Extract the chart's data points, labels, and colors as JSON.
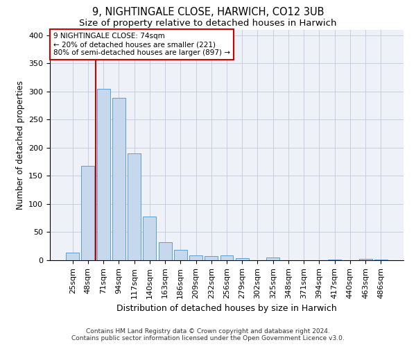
{
  "title_line1": "9, NIGHTINGALE CLOSE, HARWICH, CO12 3UB",
  "title_line2": "Size of property relative to detached houses in Harwich",
  "xlabel": "Distribution of detached houses by size in Harwich",
  "ylabel": "Number of detached properties",
  "categories": [
    "25sqm",
    "48sqm",
    "71sqm",
    "94sqm",
    "117sqm",
    "140sqm",
    "163sqm",
    "186sqm",
    "209sqm",
    "232sqm",
    "256sqm",
    "279sqm",
    "302sqm",
    "325sqm",
    "348sqm",
    "371sqm",
    "394sqm",
    "417sqm",
    "440sqm",
    "463sqm",
    "486sqm"
  ],
  "values": [
    14,
    168,
    305,
    288,
    190,
    78,
    32,
    19,
    9,
    8,
    9,
    4,
    0,
    5,
    0,
    0,
    0,
    1,
    0,
    2,
    1
  ],
  "bar_color": "#c8d8ec",
  "bar_edge_color": "#5a9fd4",
  "vline_index": 2,
  "annotation_text_line1": "9 NIGHTINGALE CLOSE: 74sqm",
  "annotation_text_line2": "← 20% of detached houses are smaller (221)",
  "annotation_text_line3": "80% of semi-detached houses are larger (897) →",
  "annotation_box_color": "white",
  "annotation_box_edge": "#cc0000",
  "vline_color": "#cc0000",
  "grid_color": "#c0c8d8",
  "background_color": "#eef2f8",
  "footer_line1": "Contains HM Land Registry data © Crown copyright and database right 2024.",
  "footer_line2": "Contains public sector information licensed under the Open Government Licence v3.0.",
  "ylim": [
    0,
    410
  ],
  "yticks": [
    0,
    50,
    100,
    150,
    200,
    250,
    300,
    350,
    400
  ],
  "title_fontsize": 10.5,
  "subtitle_fontsize": 9.5,
  "tick_fontsize": 8,
  "xlabel_fontsize": 9,
  "ylabel_fontsize": 8.5,
  "footer_fontsize": 6.5
}
